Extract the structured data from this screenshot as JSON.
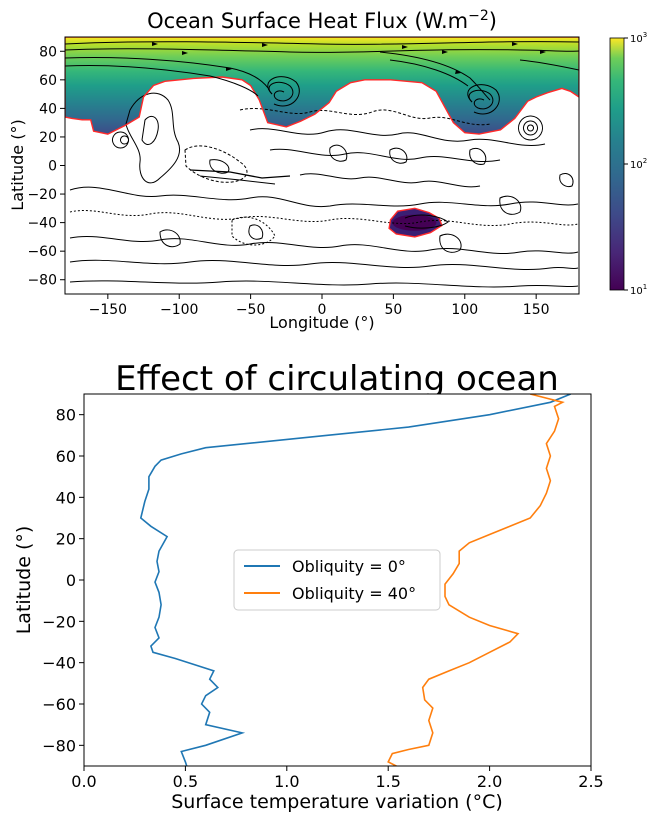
{
  "chart_data": [
    {
      "type": "heatmap",
      "title": "Ocean Surface Heat Flux (W.m",
      "title_sup": "−2",
      "title_close": ")",
      "xlabel": "Longitude (°)",
      "ylabel": "Latitude (°)",
      "xlim": [
        -180,
        180
      ],
      "ylim": [
        -90,
        90
      ],
      "xticks": [
        -150,
        -100,
        -50,
        0,
        50,
        100,
        150
      ],
      "yticks": [
        -80,
        -60,
        -40,
        -20,
        0,
        20,
        40,
        60,
        80
      ],
      "xtick_labels": [
        "−150",
        "−100",
        "−50",
        "0",
        "50",
        "100",
        "150"
      ],
      "ytick_labels": [
        "−80",
        "−60",
        "−40",
        "−20",
        "0",
        "20",
        "40",
        "60",
        "80"
      ],
      "colorbar": {
        "scale": "log",
        "range": [
          10,
          1000
        ],
        "colormap": "viridis",
        "tick_base": "10",
        "tick_exps": [
          "1",
          "2",
          "3"
        ]
      },
      "ocean_regions": [
        {
          "name": "northern ocean",
          "boundary": [
            [
              -180,
              34
            ],
            [
              -175,
              33
            ],
            [
              -168,
              32
            ],
            [
              -162,
              32
            ],
            [
              -160,
              24
            ],
            [
              -150,
              22
            ],
            [
              -138,
              28
            ],
            [
              -128,
              34
            ],
            [
              -125,
              48
            ],
            [
              -118,
              56
            ],
            [
              -110,
              59
            ],
            [
              -90,
              61
            ],
            [
              -70,
              62
            ],
            [
              -56,
              60
            ],
            [
              -50,
              56
            ],
            [
              -44,
              46
            ],
            [
              -38,
              30
            ],
            [
              -25,
              27
            ],
            [
              -15,
              31
            ],
            [
              -5,
              36
            ],
            [
              5,
              44
            ],
            [
              10,
              52
            ],
            [
              20,
              58
            ],
            [
              30,
              60
            ],
            [
              48,
              60
            ],
            [
              70,
              58
            ],
            [
              80,
              52
            ],
            [
              86,
              41
            ],
            [
              92,
              30
            ],
            [
              100,
              23
            ],
            [
              110,
              22
            ],
            [
              125,
              25
            ],
            [
              135,
              33
            ],
            [
              144,
              45
            ],
            [
              150,
              48
            ],
            [
              158,
              51
            ],
            [
              168,
              54
            ],
            [
              174,
              52
            ],
            [
              180,
              48
            ],
            [
              180,
              90
            ],
            [
              -180,
              90
            ]
          ],
          "heat_flux_north_edge": 1000,
          "heat_flux_south_edge": 60
        },
        {
          "name": "southern basin",
          "boundary": [
            [
              48,
              -38
            ],
            [
              53,
              -32
            ],
            [
              65,
              -30
            ],
            [
              75,
              -33
            ],
            [
              82,
              -37
            ],
            [
              84,
              -42
            ],
            [
              76,
              -47
            ],
            [
              65,
              -50
            ],
            [
              52,
              -48
            ],
            [
              47,
              -44
            ]
          ],
          "heat_flux": 15
        }
      ]
    },
    {
      "type": "line",
      "title": "Effect of circulating ocean",
      "xlabel": "Surface temperature variation (°C)",
      "ylabel": "Latitude (°)",
      "xlim": [
        0.0,
        2.5
      ],
      "ylim": [
        -90,
        90
      ],
      "xticks": [
        0.0,
        0.5,
        1.0,
        1.5,
        2.0,
        2.5
      ],
      "xtick_labels": [
        "0.0",
        "0.5",
        "1.0",
        "1.5",
        "2.0",
        "2.5"
      ],
      "yticks": [
        -80,
        -60,
        -40,
        -20,
        0,
        20,
        40,
        60,
        80
      ],
      "ytick_labels": [
        "−80",
        "−60",
        "−40",
        "−20",
        "0",
        "20",
        "40",
        "60",
        "80"
      ],
      "legend_position": "center",
      "series": [
        {
          "name": "Obliquity = 0°",
          "color": "#1f77b4",
          "points": [
            [
              0.51,
              -91
            ],
            [
              0.5,
              -88
            ],
            [
              0.48,
              -83
            ],
            [
              0.6,
              -80
            ],
            [
              0.78,
              -74
            ],
            [
              0.6,
              -70
            ],
            [
              0.62,
              -64
            ],
            [
              0.58,
              -60
            ],
            [
              0.6,
              -56
            ],
            [
              0.66,
              -52
            ],
            [
              0.62,
              -48
            ],
            [
              0.64,
              -44
            ],
            [
              0.45,
              -38
            ],
            [
              0.34,
              -35
            ],
            [
              0.33,
              -32
            ],
            [
              0.37,
              -28
            ],
            [
              0.35,
              -23
            ],
            [
              0.37,
              -18
            ],
            [
              0.38,
              -12
            ],
            [
              0.37,
              -6
            ],
            [
              0.35,
              -1
            ],
            [
              0.37,
              4
            ],
            [
              0.36,
              9
            ],
            [
              0.37,
              14
            ],
            [
              0.41,
              21
            ],
            [
              0.33,
              26
            ],
            [
              0.28,
              30
            ],
            [
              0.3,
              38
            ],
            [
              0.32,
              44
            ],
            [
              0.32,
              50
            ],
            [
              0.35,
              55
            ],
            [
              0.38,
              58
            ],
            [
              0.48,
              61
            ],
            [
              0.6,
              64
            ],
            [
              0.8,
              66
            ],
            [
              1.2,
              70
            ],
            [
              1.6,
              74
            ],
            [
              2.0,
              80
            ],
            [
              2.3,
              86
            ],
            [
              2.4,
              90
            ]
          ]
        },
        {
          "name": "Obliquity = 40°",
          "color": "#ff7f0e",
          "points": [
            [
              1.56,
              -91
            ],
            [
              1.5,
              -88
            ],
            [
              1.52,
              -84
            ],
            [
              1.6,
              -82
            ],
            [
              1.7,
              -80
            ],
            [
              1.72,
              -74
            ],
            [
              1.7,
              -68
            ],
            [
              1.72,
              -62
            ],
            [
              1.68,
              -58
            ],
            [
              1.67,
              -52
            ],
            [
              1.7,
              -48
            ],
            [
              1.8,
              -44
            ],
            [
              1.9,
              -40
            ],
            [
              2.0,
              -35
            ],
            [
              2.1,
              -30
            ],
            [
              2.14,
              -26
            ],
            [
              2.0,
              -22
            ],
            [
              1.9,
              -18
            ],
            [
              1.8,
              -12
            ],
            [
              1.78,
              -8
            ],
            [
              1.78,
              -2
            ],
            [
              1.82,
              3
            ],
            [
              1.85,
              8
            ],
            [
              1.85,
              14
            ],
            [
              1.9,
              18
            ],
            [
              2.0,
              22
            ],
            [
              2.1,
              26
            ],
            [
              2.2,
              30
            ],
            [
              2.25,
              36
            ],
            [
              2.28,
              42
            ],
            [
              2.3,
              48
            ],
            [
              2.28,
              54
            ],
            [
              2.3,
              60
            ],
            [
              2.28,
              66
            ],
            [
              2.32,
              72
            ],
            [
              2.34,
              78
            ],
            [
              2.32,
              84
            ],
            [
              2.36,
              86
            ],
            [
              2.28,
              88
            ],
            [
              2.2,
              90
            ]
          ]
        }
      ]
    }
  ]
}
